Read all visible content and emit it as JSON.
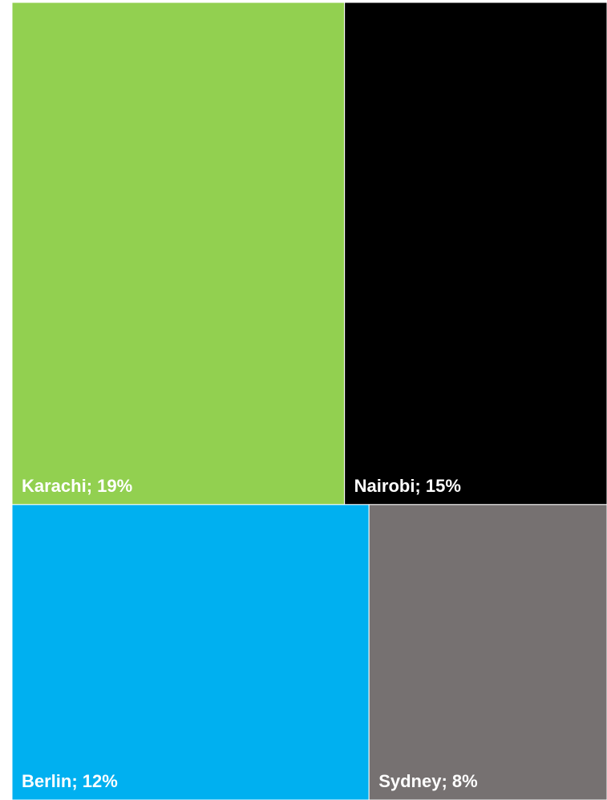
{
  "chart_data": {
    "type": "treemap",
    "title": "",
    "items": [
      {
        "name": "Karachi",
        "value": 19,
        "label": "Karachi; 19%",
        "color": "#92D050"
      },
      {
        "name": "Nairobi",
        "value": 15,
        "label": "Nairobi; 15%",
        "color": "#000000"
      },
      {
        "name": "Berlin",
        "value": 12,
        "label": "Berlin; 12%",
        "color": "#00B0F0"
      },
      {
        "name": "Sydney",
        "value": 8,
        "label": "Sydney; 8%",
        "color": "#767171"
      }
    ],
    "border_color": "#ffffff"
  }
}
